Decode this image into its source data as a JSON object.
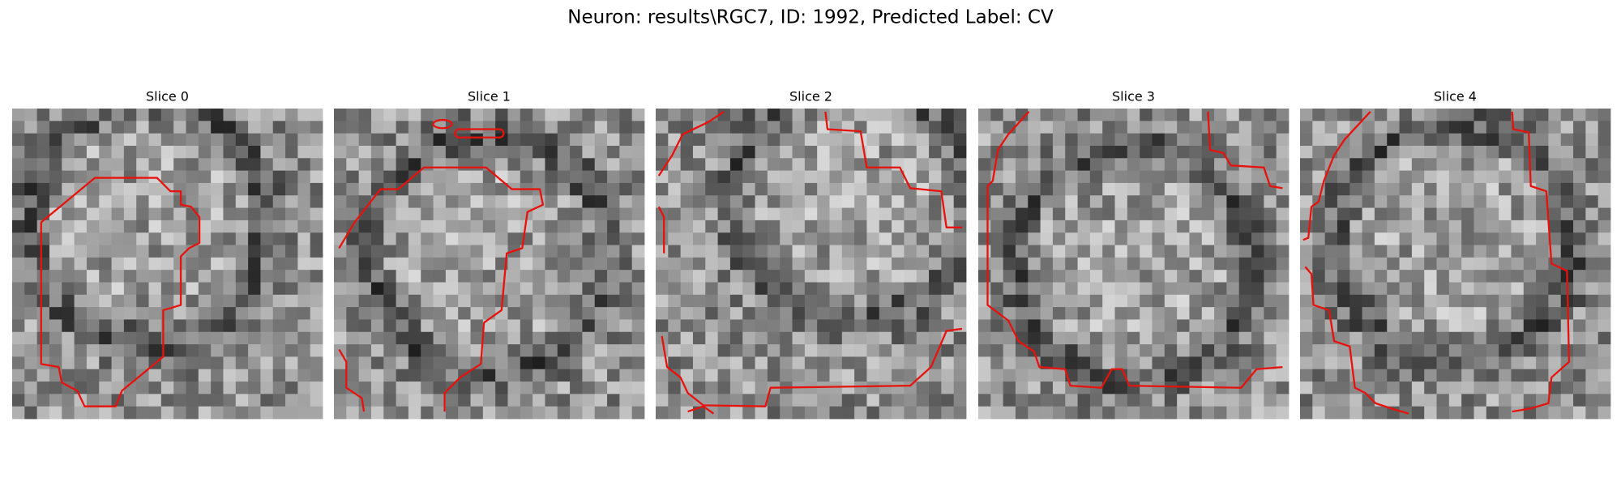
{
  "header": {
    "title": "Neuron: results\\RGC7, ID: 1992, Predicted Label: CV"
  },
  "panels": [
    {
      "title": "Slice 0"
    },
    {
      "title": "Slice 1"
    },
    {
      "title": "Slice 2"
    },
    {
      "title": "Slice 3"
    },
    {
      "title": "Slice 4"
    }
  ]
}
